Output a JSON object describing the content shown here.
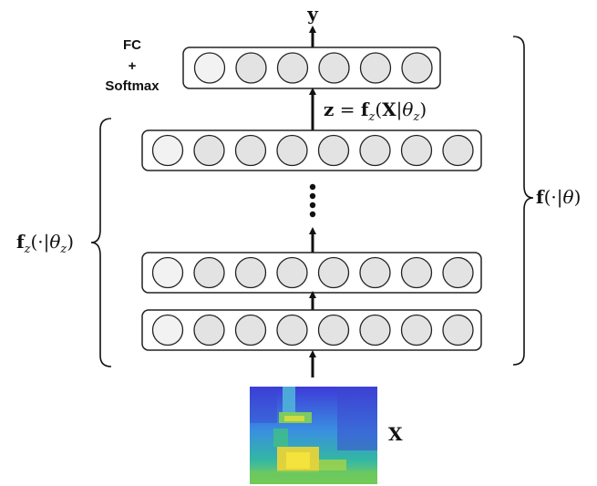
{
  "output_label": "y",
  "head_label": {
    "line1": "FC",
    "line2": "+",
    "line3": "Softmax"
  },
  "embedding_eq": {
    "lhs": "z",
    "eq": " = ",
    "f": "f",
    "f_sub": "z",
    "args_open": "(",
    "X": "X",
    "bar": "|",
    "theta": "θ",
    "theta_sub": "z",
    "args_close": ")"
  },
  "encoder_label": {
    "f": "f",
    "f_sub": "z",
    "args": "(·|",
    "theta": "θ",
    "theta_sub": "z",
    "close": ")"
  },
  "full_label": {
    "f": "f",
    "args": "(·|",
    "theta": "θ",
    "close": ")"
  },
  "input_label": "X",
  "layers": [
    {
      "name": "softmax-layer",
      "neurons": 6
    },
    {
      "name": "hidden-layer-top",
      "neurons": 8
    },
    {
      "name": "hidden-layer-2",
      "neurons": 8
    },
    {
      "name": "hidden-layer-1",
      "neurons": 8
    }
  ],
  "colors": {
    "neuron_fill_first": "#f2f2f2",
    "neuron_fill": "#e3e3e3",
    "stroke": "#222222",
    "spectrogram_low": "#3b3bd6",
    "spectrogram_mid": "#2fb6a8",
    "spectrogram_high": "#f2e03a"
  }
}
